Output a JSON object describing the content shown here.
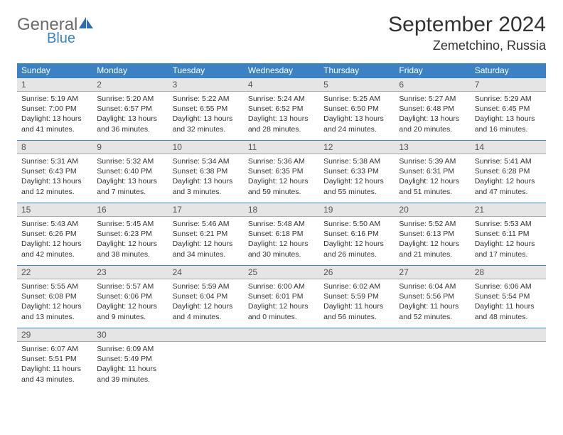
{
  "brand": {
    "name": "General",
    "sub": "Blue"
  },
  "title": "September 2024",
  "location": "Zemetchino, Russia",
  "colors": {
    "header_bg": "#3b82c4",
    "header_text": "#ffffff",
    "daynum_bg": "#e5e5e5",
    "border_top": "#3b82c4",
    "text": "#333333"
  },
  "weekdays": [
    "Sunday",
    "Monday",
    "Tuesday",
    "Wednesday",
    "Thursday",
    "Friday",
    "Saturday"
  ],
  "weeks": [
    [
      {
        "n": "1",
        "sunrise": "Sunrise: 5:19 AM",
        "sunset": "Sunset: 7:00 PM",
        "daylight": "Daylight: 13 hours and 41 minutes."
      },
      {
        "n": "2",
        "sunrise": "Sunrise: 5:20 AM",
        "sunset": "Sunset: 6:57 PM",
        "daylight": "Daylight: 13 hours and 36 minutes."
      },
      {
        "n": "3",
        "sunrise": "Sunrise: 5:22 AM",
        "sunset": "Sunset: 6:55 PM",
        "daylight": "Daylight: 13 hours and 32 minutes."
      },
      {
        "n": "4",
        "sunrise": "Sunrise: 5:24 AM",
        "sunset": "Sunset: 6:52 PM",
        "daylight": "Daylight: 13 hours and 28 minutes."
      },
      {
        "n": "5",
        "sunrise": "Sunrise: 5:25 AM",
        "sunset": "Sunset: 6:50 PM",
        "daylight": "Daylight: 13 hours and 24 minutes."
      },
      {
        "n": "6",
        "sunrise": "Sunrise: 5:27 AM",
        "sunset": "Sunset: 6:48 PM",
        "daylight": "Daylight: 13 hours and 20 minutes."
      },
      {
        "n": "7",
        "sunrise": "Sunrise: 5:29 AM",
        "sunset": "Sunset: 6:45 PM",
        "daylight": "Daylight: 13 hours and 16 minutes."
      }
    ],
    [
      {
        "n": "8",
        "sunrise": "Sunrise: 5:31 AM",
        "sunset": "Sunset: 6:43 PM",
        "daylight": "Daylight: 13 hours and 12 minutes."
      },
      {
        "n": "9",
        "sunrise": "Sunrise: 5:32 AM",
        "sunset": "Sunset: 6:40 PM",
        "daylight": "Daylight: 13 hours and 7 minutes."
      },
      {
        "n": "10",
        "sunrise": "Sunrise: 5:34 AM",
        "sunset": "Sunset: 6:38 PM",
        "daylight": "Daylight: 13 hours and 3 minutes."
      },
      {
        "n": "11",
        "sunrise": "Sunrise: 5:36 AM",
        "sunset": "Sunset: 6:35 PM",
        "daylight": "Daylight: 12 hours and 59 minutes."
      },
      {
        "n": "12",
        "sunrise": "Sunrise: 5:38 AM",
        "sunset": "Sunset: 6:33 PM",
        "daylight": "Daylight: 12 hours and 55 minutes."
      },
      {
        "n": "13",
        "sunrise": "Sunrise: 5:39 AM",
        "sunset": "Sunset: 6:31 PM",
        "daylight": "Daylight: 12 hours and 51 minutes."
      },
      {
        "n": "14",
        "sunrise": "Sunrise: 5:41 AM",
        "sunset": "Sunset: 6:28 PM",
        "daylight": "Daylight: 12 hours and 47 minutes."
      }
    ],
    [
      {
        "n": "15",
        "sunrise": "Sunrise: 5:43 AM",
        "sunset": "Sunset: 6:26 PM",
        "daylight": "Daylight: 12 hours and 42 minutes."
      },
      {
        "n": "16",
        "sunrise": "Sunrise: 5:45 AM",
        "sunset": "Sunset: 6:23 PM",
        "daylight": "Daylight: 12 hours and 38 minutes."
      },
      {
        "n": "17",
        "sunrise": "Sunrise: 5:46 AM",
        "sunset": "Sunset: 6:21 PM",
        "daylight": "Daylight: 12 hours and 34 minutes."
      },
      {
        "n": "18",
        "sunrise": "Sunrise: 5:48 AM",
        "sunset": "Sunset: 6:18 PM",
        "daylight": "Daylight: 12 hours and 30 minutes."
      },
      {
        "n": "19",
        "sunrise": "Sunrise: 5:50 AM",
        "sunset": "Sunset: 6:16 PM",
        "daylight": "Daylight: 12 hours and 26 minutes."
      },
      {
        "n": "20",
        "sunrise": "Sunrise: 5:52 AM",
        "sunset": "Sunset: 6:13 PM",
        "daylight": "Daylight: 12 hours and 21 minutes."
      },
      {
        "n": "21",
        "sunrise": "Sunrise: 5:53 AM",
        "sunset": "Sunset: 6:11 PM",
        "daylight": "Daylight: 12 hours and 17 minutes."
      }
    ],
    [
      {
        "n": "22",
        "sunrise": "Sunrise: 5:55 AM",
        "sunset": "Sunset: 6:08 PM",
        "daylight": "Daylight: 12 hours and 13 minutes."
      },
      {
        "n": "23",
        "sunrise": "Sunrise: 5:57 AM",
        "sunset": "Sunset: 6:06 PM",
        "daylight": "Daylight: 12 hours and 9 minutes."
      },
      {
        "n": "24",
        "sunrise": "Sunrise: 5:59 AM",
        "sunset": "Sunset: 6:04 PM",
        "daylight": "Daylight: 12 hours and 4 minutes."
      },
      {
        "n": "25",
        "sunrise": "Sunrise: 6:00 AM",
        "sunset": "Sunset: 6:01 PM",
        "daylight": "Daylight: 12 hours and 0 minutes."
      },
      {
        "n": "26",
        "sunrise": "Sunrise: 6:02 AM",
        "sunset": "Sunset: 5:59 PM",
        "daylight": "Daylight: 11 hours and 56 minutes."
      },
      {
        "n": "27",
        "sunrise": "Sunrise: 6:04 AM",
        "sunset": "Sunset: 5:56 PM",
        "daylight": "Daylight: 11 hours and 52 minutes."
      },
      {
        "n": "28",
        "sunrise": "Sunrise: 6:06 AM",
        "sunset": "Sunset: 5:54 PM",
        "daylight": "Daylight: 11 hours and 48 minutes."
      }
    ],
    [
      {
        "n": "29",
        "sunrise": "Sunrise: 6:07 AM",
        "sunset": "Sunset: 5:51 PM",
        "daylight": "Daylight: 11 hours and 43 minutes."
      },
      {
        "n": "30",
        "sunrise": "Sunrise: 6:09 AM",
        "sunset": "Sunset: 5:49 PM",
        "daylight": "Daylight: 11 hours and 39 minutes."
      },
      {
        "n": "",
        "sunrise": "",
        "sunset": "",
        "daylight": ""
      },
      {
        "n": "",
        "sunrise": "",
        "sunset": "",
        "daylight": ""
      },
      {
        "n": "",
        "sunrise": "",
        "sunset": "",
        "daylight": ""
      },
      {
        "n": "",
        "sunrise": "",
        "sunset": "",
        "daylight": ""
      },
      {
        "n": "",
        "sunrise": "",
        "sunset": "",
        "daylight": ""
      }
    ]
  ]
}
